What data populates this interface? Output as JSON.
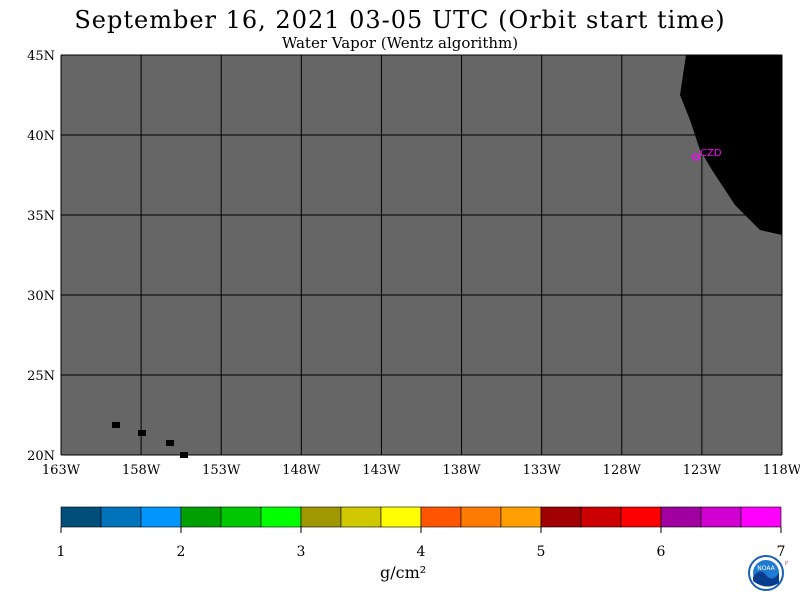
{
  "title": "September 16, 2021  03-05 UTC  (Orbit start time)",
  "subtitle": "Water Vapor (Wentz algorithm)",
  "map": {
    "lat_labels": [
      "45N",
      "40N",
      "35N",
      "30N",
      "25N",
      "20N"
    ],
    "lon_labels": [
      "163W",
      "158W",
      "153W",
      "148W",
      "143W",
      "138W",
      "133W",
      "128W",
      "123W",
      "118W"
    ],
    "station_label": "CZD",
    "colors": {
      "no_data": "#666666",
      "land": "#000000",
      "grid": "#000000",
      "station": "#ff00ff"
    }
  },
  "legend": {
    "colors": [
      "#004f7a",
      "#0073bb",
      "#0095ff",
      "#00a000",
      "#00c800",
      "#00ff00",
      "#a09800",
      "#cfc800",
      "#ffff00",
      "#ff5500",
      "#ff7a00",
      "#ffa000",
      "#a00000",
      "#cc0000",
      "#ff0000",
      "#a000a0",
      "#d000d0",
      "#ff00ff"
    ],
    "tick_labels": [
      "1",
      "2",
      "3",
      "4",
      "5",
      "6",
      "7"
    ],
    "units": "g/cm²"
  },
  "logo": {
    "name": "NOAA",
    "side_letters": "PSL"
  }
}
